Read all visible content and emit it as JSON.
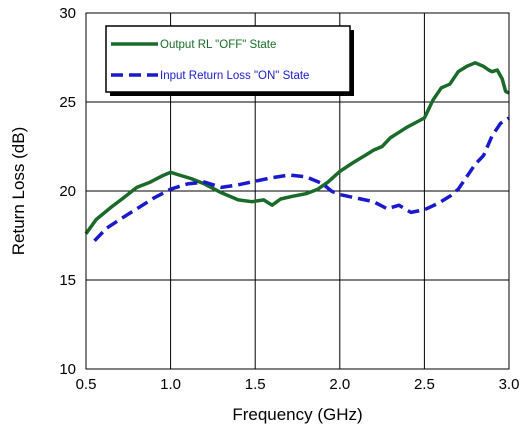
{
  "chart_data": {
    "type": "line",
    "xlabel": "Frequency (GHz)",
    "ylabel": "Return Loss (dB)",
    "xlim": [
      0.5,
      3.0
    ],
    "ylim": [
      10,
      30
    ],
    "xticks": [
      0.5,
      1.0,
      1.5,
      2.0,
      2.5,
      3.0
    ],
    "xtick_labels": [
      "0.5",
      "1.0",
      "1.5",
      "2.0",
      "2.5",
      "3.0"
    ],
    "yticks": [
      10,
      15,
      20,
      25,
      30
    ],
    "ytick_labels": [
      "10",
      "15",
      "20",
      "25",
      "30"
    ],
    "grid": true,
    "legend_position": "top-left",
    "series": [
      {
        "name": "Output RL \"OFF\" State",
        "color": "#1a6b2a",
        "style": "solid",
        "x": [
          0.5,
          0.56,
          0.65,
          0.72,
          0.8,
          0.88,
          0.95,
          1.0,
          1.05,
          1.12,
          1.2,
          1.3,
          1.4,
          1.48,
          1.55,
          1.6,
          1.65,
          1.72,
          1.8,
          1.87,
          1.93,
          2.0,
          2.08,
          2.15,
          2.2,
          2.25,
          2.3,
          2.35,
          2.4,
          2.5,
          2.55,
          2.6,
          2.65,
          2.7,
          2.75,
          2.8,
          2.85,
          2.88,
          2.9,
          2.93,
          2.96,
          2.98,
          3.0
        ],
        "y": [
          17.6,
          18.4,
          19.1,
          19.6,
          20.2,
          20.5,
          20.85,
          21.05,
          20.9,
          20.7,
          20.4,
          19.9,
          19.5,
          19.4,
          19.5,
          19.2,
          19.55,
          19.7,
          19.85,
          20.1,
          20.5,
          21.1,
          21.6,
          22.0,
          22.3,
          22.5,
          23.0,
          23.3,
          23.6,
          24.1,
          25.1,
          25.8,
          26.0,
          26.7,
          27.0,
          27.2,
          27.0,
          26.8,
          26.7,
          26.8,
          26.3,
          25.6,
          25.5
        ]
      },
      {
        "name": "Input Return Loss \"ON\" State",
        "color": "#1a1acc",
        "style": "dashed",
        "x": [
          0.55,
          0.62,
          0.7,
          0.8,
          0.9,
          1.0,
          1.1,
          1.2,
          1.3,
          1.4,
          1.5,
          1.6,
          1.7,
          1.8,
          1.9,
          1.95,
          2.0,
          2.1,
          2.2,
          2.28,
          2.35,
          2.42,
          2.5,
          2.58,
          2.65,
          2.7,
          2.75,
          2.8,
          2.85,
          2.9,
          2.95,
          3.0
        ],
        "y": [
          17.2,
          17.9,
          18.4,
          19.0,
          19.6,
          20.1,
          20.4,
          20.5,
          20.2,
          20.35,
          20.55,
          20.75,
          20.9,
          20.8,
          20.4,
          20.0,
          19.8,
          19.6,
          19.4,
          19.0,
          19.2,
          18.8,
          18.95,
          19.3,
          19.7,
          20.1,
          20.8,
          21.5,
          22.0,
          23.1,
          23.8,
          24.1
        ]
      }
    ]
  }
}
